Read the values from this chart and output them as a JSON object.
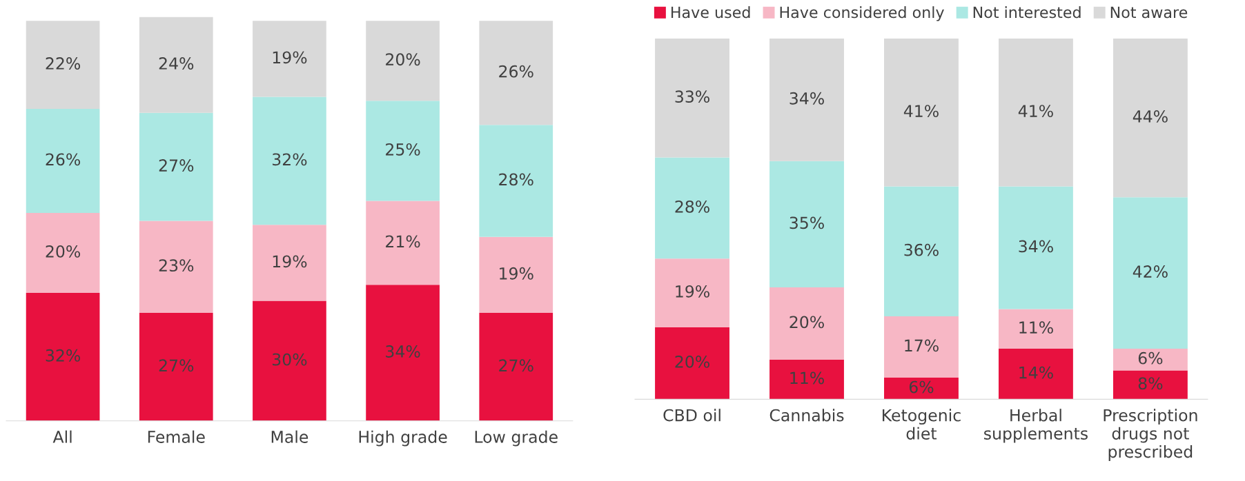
{
  "chart_data": [
    {
      "type": "bar",
      "stacked": true,
      "categories": [
        "All",
        "Female",
        "Male",
        "High grade",
        "Low grade"
      ],
      "legend": false,
      "series": [
        {
          "color": "#e8113f",
          "values": [
            32,
            27,
            30,
            34,
            27
          ],
          "value_labels": [
            "32%",
            "27%",
            "30%",
            "34%",
            "27%"
          ]
        },
        {
          "color": "#f7b7c5",
          "values": [
            20,
            23,
            19,
            21,
            19
          ],
          "value_labels": [
            "20%",
            "23%",
            "19%",
            "21%",
            "19%"
          ]
        },
        {
          "color": "#abe8e3",
          "values": [
            26,
            27,
            32,
            25,
            28
          ],
          "value_labels": [
            "26%",
            "27%",
            "32%",
            "25%",
            "28%"
          ]
        },
        {
          "color": "#d9d9d9",
          "values": [
            22,
            24,
            19,
            20,
            26
          ],
          "value_labels": [
            "22%",
            "24%",
            "19%",
            "20%",
            "26%"
          ]
        }
      ]
    },
    {
      "type": "bar",
      "stacked": true,
      "categories": [
        "CBD oil",
        "Cannabis",
        "Ketogenic\ndiet",
        "Herbal\nsupplements",
        "Prescription\ndrugs not\nprescribed"
      ],
      "legend": "top",
      "series": [
        {
          "name": "Have used",
          "color": "#e8113f",
          "values": [
            20,
            11,
            6,
            14,
            8
          ],
          "value_labels": [
            "20%",
            "11%",
            "6%",
            "14%",
            "8%"
          ]
        },
        {
          "name": "Have considered only",
          "color": "#f7b7c5",
          "values": [
            19,
            20,
            17,
            11,
            6
          ],
          "value_labels": [
            "19%",
            "20%",
            "17%",
            "11%",
            "6%"
          ]
        },
        {
          "name": "Not interested",
          "color": "#abe8e3",
          "values": [
            28,
            35,
            36,
            34,
            42
          ],
          "value_labels": [
            "28%",
            "35%",
            "36%",
            "34%",
            "42%"
          ]
        },
        {
          "name": "Not aware",
          "color": "#d9d9d9",
          "values": [
            33,
            34,
            41,
            41,
            44
          ],
          "value_labels": [
            "33%",
            "34%",
            "41%",
            "41%",
            "44%"
          ]
        }
      ]
    }
  ]
}
